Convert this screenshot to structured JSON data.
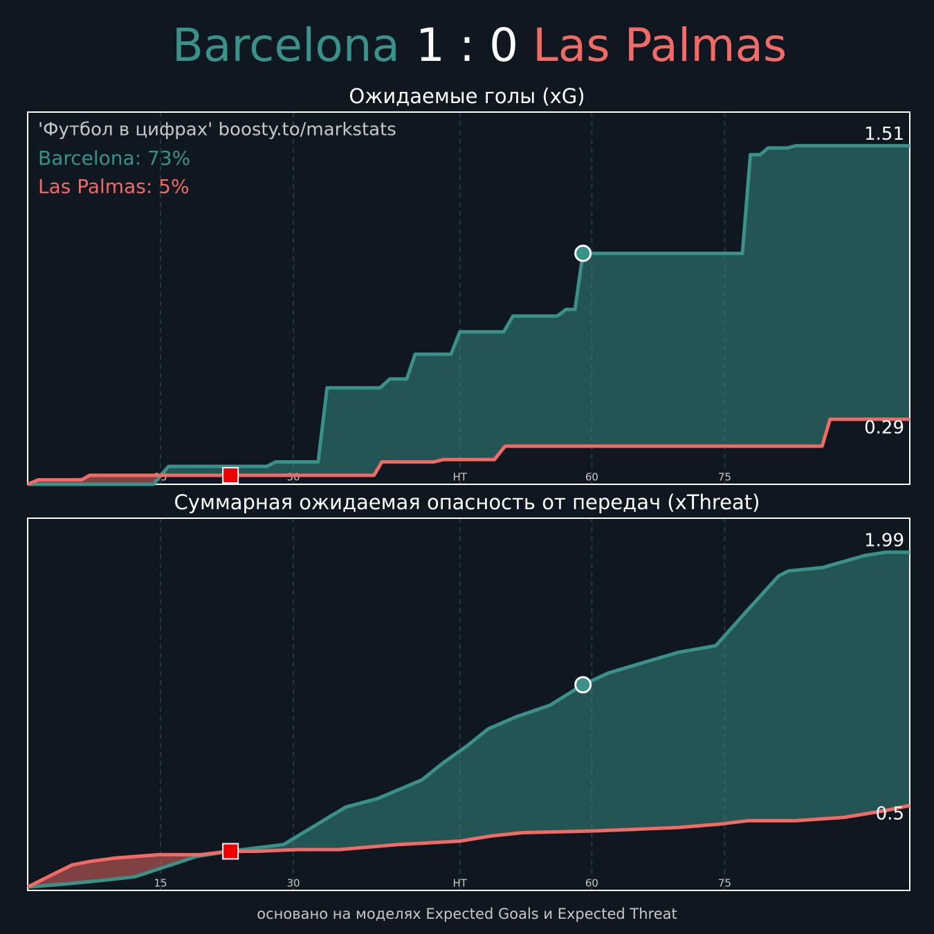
{
  "header": {
    "home": "Barcelona",
    "score": "1 : 0",
    "away": "Las Palmas"
  },
  "footer": "основано на моделях Expected Goals и Expected Threat",
  "chart_data": [
    {
      "type": "line",
      "title": "Ожидаемые голы (xG)",
      "annotation": "'Футбол в цифрах' boosty.to/markstats",
      "legend_texts": [
        "Barcelona: 73%",
        "Las Palmas: 5%"
      ],
      "xlim": [
        0,
        99.6
      ],
      "ylim": [
        0,
        1.66
      ],
      "xticks": [
        15,
        30,
        {
          "value": 48.8,
          "label": "HT"
        },
        {
          "value": 63.7,
          "label": "60"
        },
        {
          "value": 78.7,
          "label": "75"
        }
      ],
      "grid": true,
      "goal_x": 62.7,
      "red_card_x": 22.9,
      "series": [
        {
          "name": "Barcelona",
          "color": "#3a9189",
          "x": [
            0,
            14.2,
            15.9,
            27.0,
            28.0,
            32.8,
            33.8,
            39.8,
            40.9,
            42.8,
            43.75,
            47.8,
            48.8,
            53.75,
            54.8,
            59.8,
            60.8,
            61.8,
            62.7,
            80.7,
            81.6,
            82.7,
            83.6,
            85.8,
            86.7,
            99.6
          ],
          "values": [
            0,
            0,
            0.08,
            0.08,
            0.1,
            0.1,
            0.43,
            0.43,
            0.47,
            0.47,
            0.58,
            0.58,
            0.68,
            0.68,
            0.75,
            0.75,
            0.78,
            0.78,
            1.03,
            1.03,
            1.47,
            1.47,
            1.5,
            1.5,
            1.51,
            1.51
          ]
        },
        {
          "name": "Las Palmas",
          "color": "#f26a66",
          "x": [
            0,
            1.2,
            6.1,
            7.0,
            39.1,
            40.0,
            45.9,
            46.9,
            52.7,
            53.9,
            89.7,
            90.6,
            99.6
          ],
          "values": [
            0,
            0.02,
            0.02,
            0.04,
            0.04,
            0.1,
            0.1,
            0.11,
            0.11,
            0.17,
            0.17,
            0.29,
            0.29
          ]
        }
      ]
    },
    {
      "type": "line",
      "title": "Суммарная ожидаемая опасность от передач (xThreat)",
      "xlim": [
        0,
        99.6
      ],
      "ylim": [
        0,
        2.19
      ],
      "xticks": [
        15,
        30,
        {
          "value": 48.8,
          "label": "HT"
        },
        {
          "value": 63.7,
          "label": "60"
        },
        {
          "value": 78.7,
          "label": "75"
        }
      ],
      "grid": true,
      "goal_x": 62.7,
      "red_card_x": 22.9,
      "series": [
        {
          "name": "Barcelona",
          "color": "#3a9189",
          "x": [
            0,
            4.7,
            8.6,
            12.1,
            15.6,
            19.1,
            22.7,
            25.8,
            28.9,
            32.4,
            35.9,
            39.5,
            44.5,
            46.9,
            49.6,
            52.0,
            55.1,
            59.0,
            62.7,
            65.6,
            69.5,
            73.4,
            77.7,
            81.3,
            84.8,
            85.9,
            89.8,
            94.5,
            96.9,
            98.4,
            99.6
          ],
          "values": [
            0.02,
            0.04,
            0.06,
            0.08,
            0.14,
            0.2,
            0.23,
            0.25,
            0.27,
            0.38,
            0.49,
            0.54,
            0.65,
            0.75,
            0.85,
            0.95,
            1.02,
            1.09,
            1.21,
            1.28,
            1.34,
            1.4,
            1.44,
            1.65,
            1.85,
            1.88,
            1.9,
            1.97,
            1.99,
            1.99,
            1.99
          ]
        },
        {
          "name": "Las Palmas",
          "color": "#f26a66",
          "x": [
            0,
            2.3,
            5.0,
            7.0,
            9.8,
            14.8,
            19.5,
            22.7,
            25.8,
            30.5,
            35.2,
            41.8,
            48.8,
            52.3,
            55.9,
            64.1,
            73.4,
            78.1,
            81.3,
            86.7,
            92.2,
            96.9,
            99.6
          ],
          "values": [
            0.02,
            0.08,
            0.15,
            0.17,
            0.19,
            0.21,
            0.21,
            0.23,
            0.23,
            0.24,
            0.24,
            0.27,
            0.29,
            0.32,
            0.34,
            0.35,
            0.37,
            0.39,
            0.41,
            0.41,
            0.43,
            0.47,
            0.5
          ]
        }
      ]
    }
  ]
}
